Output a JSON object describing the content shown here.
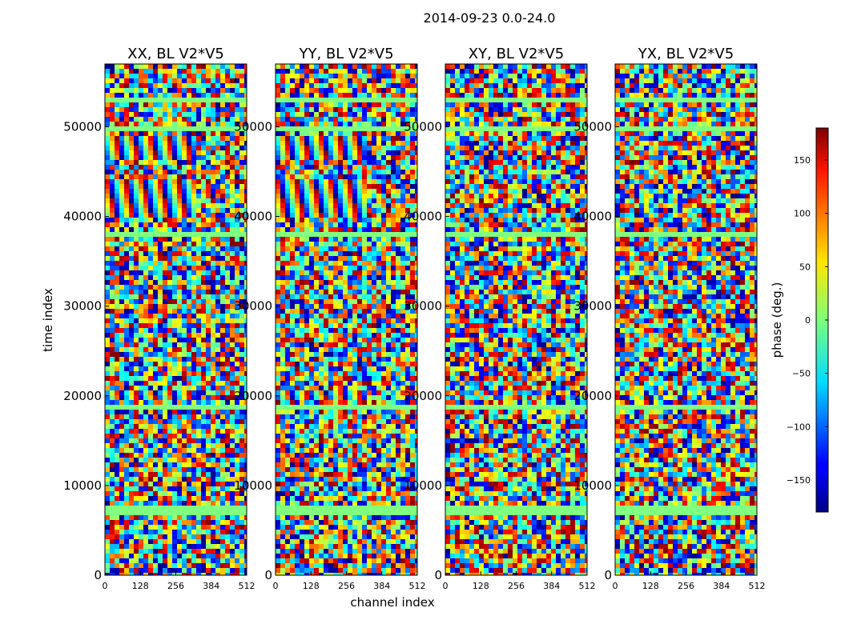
{
  "chart_data": {
    "type": "heatmap",
    "suptitle": "2014-09-23 0.0-24.0",
    "xlabel": "channel index",
    "ylabel": "time index",
    "x_range": [
      0,
      512
    ],
    "y_range": [
      0,
      57000
    ],
    "x_ticks": [
      "0",
      "128",
      "256",
      "384",
      "512"
    ],
    "y_ticks": [
      "0",
      "10000",
      "20000",
      "30000",
      "40000",
      "50000"
    ],
    "colormap": "jet",
    "colorbar": {
      "label": "phase (deg.)",
      "range": [
        -180,
        180
      ],
      "ticks": [
        "150",
        "100",
        "50",
        "0",
        "−50",
        "−100",
        "−150"
      ],
      "tick_values": [
        150,
        100,
        50,
        0,
        -50,
        -100,
        -150
      ]
    },
    "panels": [
      {
        "title": "XX, BL V2*V5"
      },
      {
        "title": "YY, BL V2*V5"
      },
      {
        "title": "XY, BL V2*V5"
      },
      {
        "title": "YX, BL V2*V5"
      }
    ]
  }
}
